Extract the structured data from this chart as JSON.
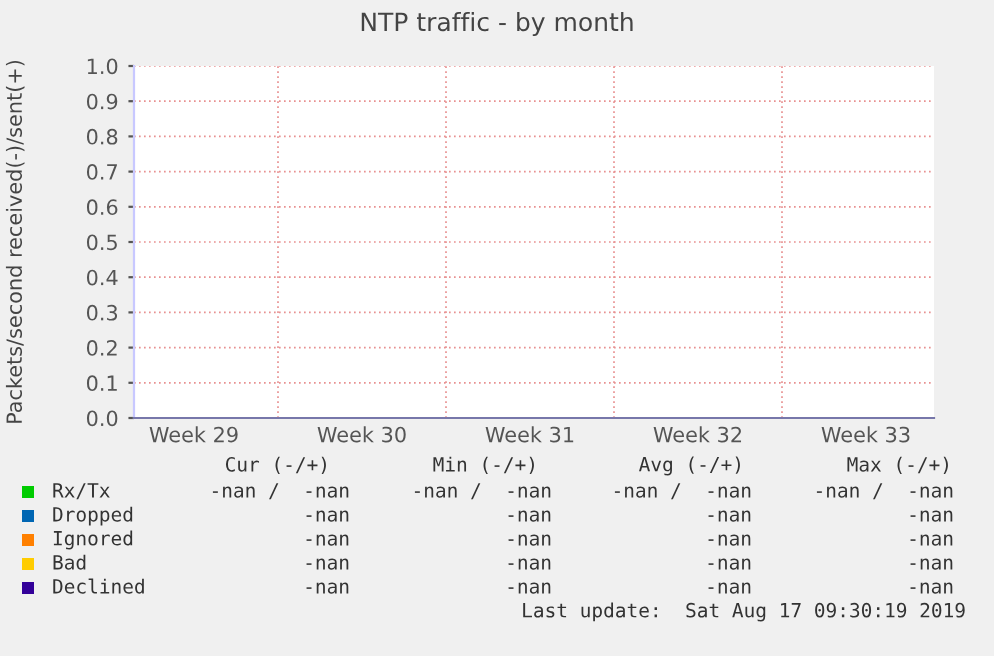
{
  "chart_data": {
    "type": "line",
    "title": "NTP traffic - by month",
    "ylabel": "Packets/second received(-)/sent(+)",
    "series": [
      {
        "name": "Rx/Tx",
        "color": "#00cc00",
        "values": [
          null,
          null,
          null,
          null,
          null
        ]
      },
      {
        "name": "Dropped",
        "color": "#0066b3",
        "values": [
          null,
          null,
          null,
          null,
          null
        ]
      },
      {
        "name": "Ignored",
        "color": "#ff8000",
        "values": [
          null,
          null,
          null,
          null,
          null
        ]
      },
      {
        "name": "Bad",
        "color": "#ffcc00",
        "values": [
          null,
          null,
          null,
          null,
          null
        ]
      },
      {
        "name": "Declined",
        "color": "#330099",
        "values": [
          null,
          null,
          null,
          null,
          null
        ]
      }
    ],
    "categories": [
      "Week 29",
      "Week 30",
      "Week 31",
      "Week 32",
      "Week 33"
    ],
    "ylim": [
      0,
      1
    ],
    "yticks": [
      {
        "value": 0,
        "label": "0.0"
      },
      {
        "value": 0.1,
        "label": "0.1"
      },
      {
        "value": 0.2,
        "label": "0.2"
      },
      {
        "value": 0.3,
        "label": "0.3"
      },
      {
        "value": 0.4,
        "label": "0.4"
      },
      {
        "value": 0.5,
        "label": "0.5"
      },
      {
        "value": 0.6,
        "label": "0.6"
      },
      {
        "value": 0.7,
        "label": "0.7"
      },
      {
        "value": 0.8,
        "label": "0.8"
      },
      {
        "value": 0.9,
        "label": "0.9"
      },
      {
        "value": 1,
        "label": "1.0"
      }
    ],
    "grid": true,
    "legend": "bottom",
    "annotations": [
      "Cur (-/+)",
      "Min (-/+)",
      "Avg (-/+)",
      "Max (-/+)",
      "-nan /  -nan",
      "-nan /  -nan",
      "-nan /  -nan",
      "-nan /  -nan",
      "-nan",
      "-nan",
      "-nan",
      "-nan",
      "-nan",
      "-nan",
      "-nan",
      "-nan",
      "-nan",
      "-nan",
      "-nan",
      "-nan",
      "-nan",
      "-nan",
      "-nan",
      "-nan",
      "Last update:  Sat Aug 17 09:30:19 2019"
    ]
  }
}
